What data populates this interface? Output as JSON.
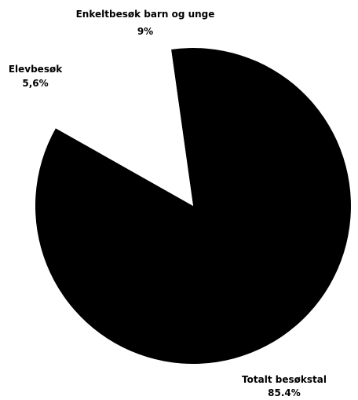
{
  "chart_data": {
    "type": "pie",
    "title": "",
    "slices": [
      {
        "label": "Totalt besøkstal",
        "value": 85.4,
        "value_label": "85.4%",
        "color": "#000000"
      },
      {
        "label": "Elevbesøk",
        "value": 5.6,
        "value_label": "5,6%",
        "color": "#ffffff"
      },
      {
        "label": "Enkeltbesøk barn og unge",
        "value": 9,
        "value_label": "9%",
        "color": "#ffffff"
      }
    ],
    "legend": "none"
  }
}
